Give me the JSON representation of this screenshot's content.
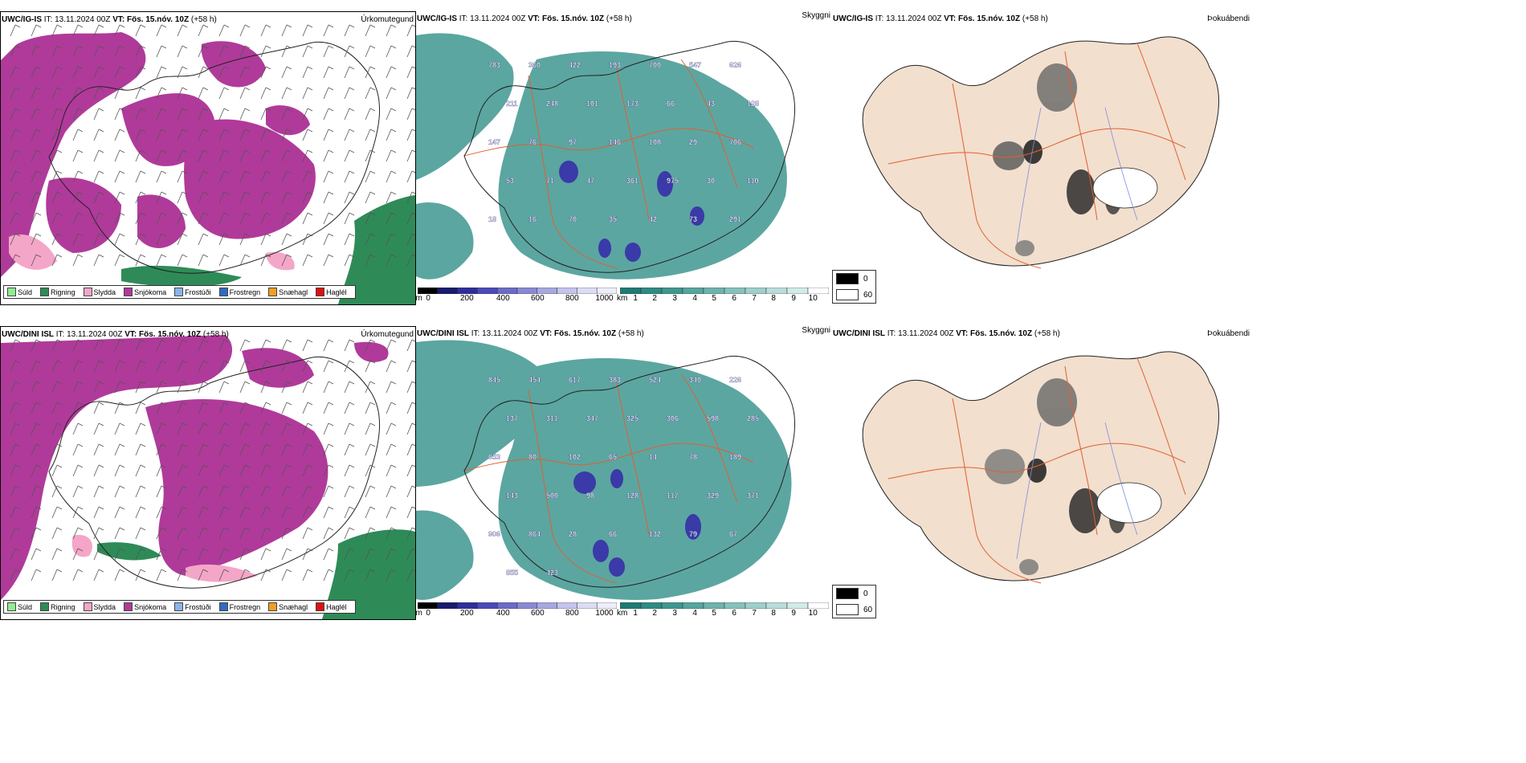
{
  "rows": [
    {
      "model": "UWC/IG-IS",
      "it_label": "IT:",
      "it_value": "13.11.2024 00Z",
      "vt_label": "VT:",
      "vt_value": "Fös. 15.nóv. 10Z",
      "lead": "(+58 h)",
      "field_precip": "Úrkomutegund",
      "field_vis": "Skyggni",
      "field_fog": "Þokuábendi",
      "elevation_labels": [
        "783",
        "360",
        "422",
        "193",
        "700",
        "547",
        "626",
        "211",
        "248",
        "101",
        "173",
        "66",
        "43",
        "128",
        "147",
        "76",
        "97",
        "146",
        "108",
        "29",
        "706",
        "53",
        "71",
        "47",
        "361",
        "975",
        "30",
        "110",
        "18",
        "16",
        "70",
        "35",
        "42",
        "73",
        "291"
      ]
    },
    {
      "model": "UWC/DINI ISL",
      "it_label": "IT:",
      "it_value": "13.11.2024 00Z",
      "vt_label": "VT:",
      "vt_value": "Fös. 15.nóv. 10Z",
      "lead": "(+58 h)",
      "field_precip": "Úrkomutegund",
      "field_vis": "Skyggni",
      "field_fog": "Þokuábendi",
      "elevation_labels": [
        "845",
        "454",
        "617",
        "383",
        "524",
        "340",
        "226",
        "137",
        "311",
        "347",
        "325",
        "306",
        "598",
        "285",
        "653",
        "80",
        "102",
        "65",
        "14",
        "78",
        "189",
        "143",
        "500",
        "98",
        "128",
        "117",
        "329",
        "371",
        "906",
        "864",
        "28",
        "66",
        "132",
        "79",
        "67",
        "855",
        "423"
      ]
    }
  ],
  "precip_legend": [
    {
      "label": "Súld",
      "color": "#90ee90"
    },
    {
      "label": "Rigning",
      "color": "#2e8b57"
    },
    {
      "label": "Slydda",
      "color": "#f4a6c8"
    },
    {
      "label": "Snjókoma",
      "color": "#b03a9a"
    },
    {
      "label": "Frostúði",
      "color": "#8ab4e8"
    },
    {
      "label": "Frostregn",
      "color": "#2f6cc0"
    },
    {
      "label": "Snæhagl",
      "color": "#f0a020"
    },
    {
      "label": "Haglél",
      "color": "#e01010"
    }
  ],
  "cloudbase_scale": {
    "unit": "m",
    "ticks": [
      "0",
      "200",
      "400",
      "600",
      "800",
      "1000"
    ],
    "colors": [
      "#000000",
      "#1a1a6e",
      "#2e2e9a",
      "#4a4ab8",
      "#6b6bc8",
      "#8a8ad4",
      "#a8a8e0",
      "#c4c4ec",
      "#dcdcf4",
      "#eeeefa"
    ]
  },
  "visibility_scale": {
    "unit": "km",
    "ticks": [
      "1",
      "2",
      "3",
      "4",
      "5",
      "6",
      "7",
      "8",
      "9",
      "10"
    ],
    "colors": [
      "#1f7a72",
      "#2e8a82",
      "#3f9790",
      "#56a59e",
      "#6eb3ad",
      "#87c1bb",
      "#a0cfca",
      "#b9ddd9",
      "#d2eae8",
      "#ffffff"
    ]
  },
  "fog_legend": [
    {
      "label": "0",
      "color": "#000000"
    },
    {
      "label": "60",
      "color": "#ffffff"
    }
  ],
  "colors": {
    "snow": "#b03a9a",
    "rain": "#2e8b57",
    "sleet": "#f4a6c8",
    "vis_teal": "#3f9790",
    "land_fog": "#f2dfce",
    "roads": "#e06030",
    "rivers": "#7d8ee0",
    "coast": "#222222"
  }
}
